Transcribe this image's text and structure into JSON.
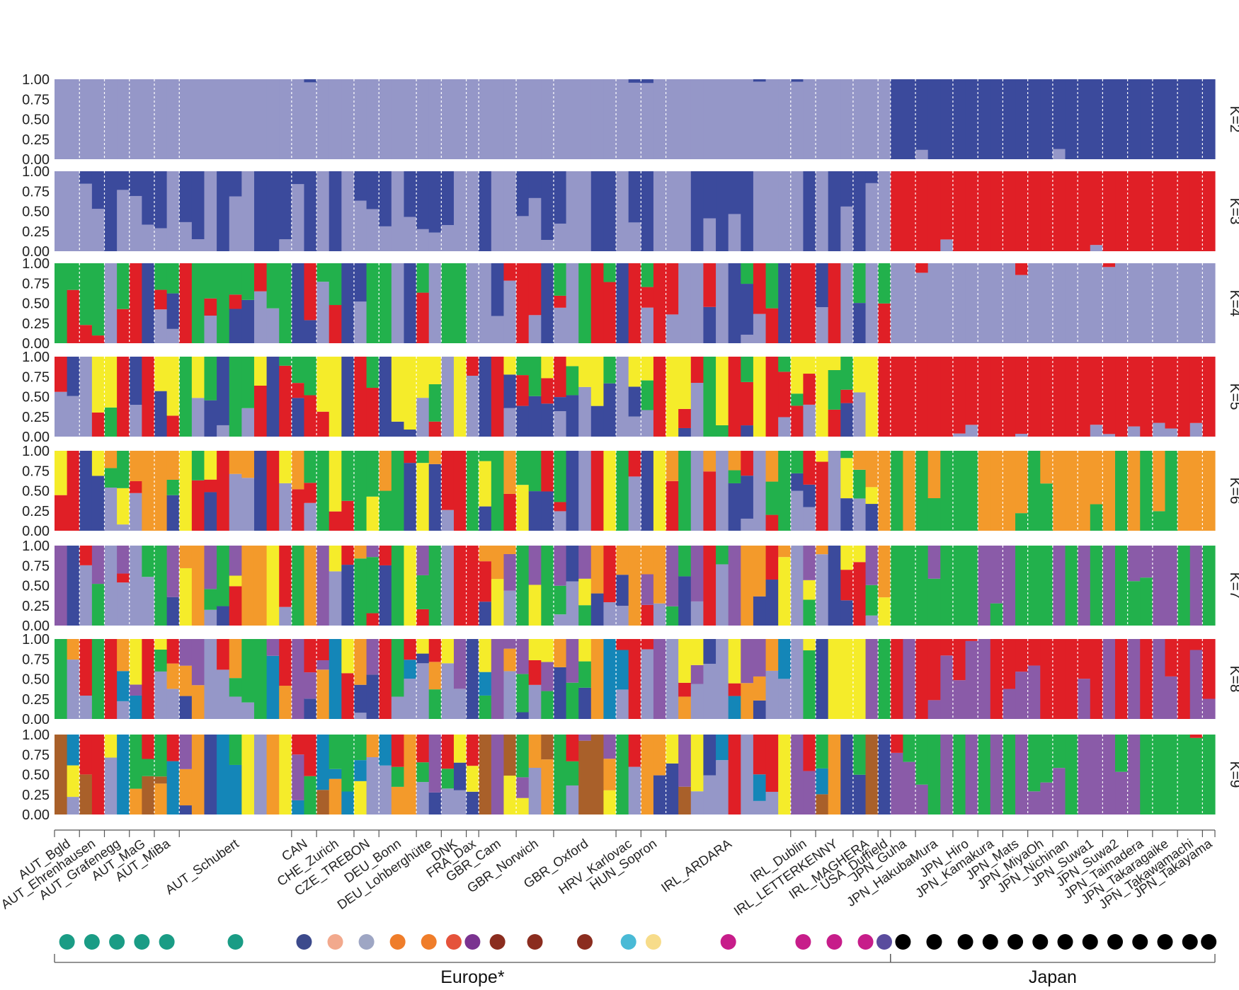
{
  "chart_data": {
    "type": "stacked-bar",
    "y_ticks": [
      "1.00",
      "0.75",
      "0.50",
      "0.25",
      "0.00"
    ],
    "ylim": [
      0,
      1
    ],
    "rows": [
      {
        "label": "K=2",
        "colors": [
          "#9597c8",
          "#3b4a9c"
        ]
      },
      {
        "label": "K=3",
        "colors": [
          "#9597c8",
          "#3b4a9c",
          "#e01f26"
        ]
      },
      {
        "label": "K=4",
        "colors": [
          "#9597c8",
          "#3b4a9c",
          "#e01f26",
          "#22b14c"
        ]
      },
      {
        "label": "K=5",
        "colors": [
          "#9597c8",
          "#3b4a9c",
          "#e01f26",
          "#22b14c",
          "#f5ec2a"
        ]
      },
      {
        "label": "K=6",
        "colors": [
          "#9597c8",
          "#3b4a9c",
          "#e01f26",
          "#f5ec2a",
          "#22b14c",
          "#f39a2b"
        ]
      },
      {
        "label": "K=7",
        "colors": [
          "#9597c8",
          "#3b4a9c",
          "#e01f26",
          "#22b14c",
          "#f5ec2a",
          "#8a5ba8",
          "#f39a2b"
        ]
      },
      {
        "label": "K=8",
        "colors": [
          "#9597c8",
          "#3b4a9c",
          "#22b14c",
          "#1486b8",
          "#f39a2b",
          "#8a5ba8",
          "#e01f26",
          "#f5ec2a"
        ]
      },
      {
        "label": "K=9",
        "colors": [
          "#9597c8",
          "#3b4a9c",
          "#f5ec2a",
          "#f39a2b",
          "#a9602a",
          "#1486b8",
          "#8a5ba8",
          "#22b14c",
          "#e01f26"
        ]
      }
    ],
    "populations": [
      {
        "name": "AUT_Bgld",
        "n": 2,
        "dot": "#1a9c85"
      },
      {
        "name": "AUT_Ehrenhausen",
        "n": 2,
        "dot": "#1a9c85"
      },
      {
        "name": "AUT_Grafenegg",
        "n": 2,
        "dot": "#1a9c85"
      },
      {
        "name": "AUT_MaG",
        "n": 2,
        "dot": "#1a9c85"
      },
      {
        "name": "AUT_MiBa",
        "n": 2,
        "dot": "#1a9c85"
      },
      {
        "name": "AUT_Schubert",
        "n": 9,
        "dot": "#1a9c85"
      },
      {
        "name": "CAN",
        "n": 2,
        "dot": "#3c4a8c"
      },
      {
        "name": "CHE_Zurich",
        "n": 3,
        "dot": "#f2a98d"
      },
      {
        "name": "CZE_TREBON",
        "n": 2,
        "dot": "#9ea6c4"
      },
      {
        "name": "DEU_Bonn",
        "n": 3,
        "dot": "#ef7d2a"
      },
      {
        "name": "DEU_Lohberghütte",
        "n": 2,
        "dot": "#ef7d2a"
      },
      {
        "name": "DNK",
        "n": 2,
        "dot": "#e5533b"
      },
      {
        "name": "FRA_Dax",
        "n": 1,
        "dot": "#7a3390"
      },
      {
        "name": "GBR_Cam",
        "n": 3,
        "dot": "#8b2d1f"
      },
      {
        "name": "GBR_Norwich",
        "n": 3,
        "dot": "#8b2d1f"
      },
      {
        "name": "GBR_Oxford",
        "n": 5,
        "dot": "#8b2d1f"
      },
      {
        "name": "HRV_Karlovac",
        "n": 2,
        "dot": "#49bad6"
      },
      {
        "name": "HUN_Sopron",
        "n": 2,
        "dot": "#f7dc8a"
      },
      {
        "name": "IRL_ARDARA",
        "n": 10,
        "dot": "#c71d8a"
      },
      {
        "name": "IRL_Dublin",
        "n": 2,
        "dot": "#c71d8a"
      },
      {
        "name": "IRL_LETTERKENNY",
        "n": 3,
        "dot": "#c71d8a"
      },
      {
        "name": "IRL_MAGHERA",
        "n": 2,
        "dot": "#c71d8a"
      },
      {
        "name": "USA_Duffield",
        "n": 1,
        "dot": "#5a4c9e"
      },
      {
        "name": "JPN_Guha",
        "n": 2,
        "dot": "#000000"
      },
      {
        "name": "JPN_HakubaMura",
        "n": 3,
        "dot": "#000000"
      },
      {
        "name": "JPN_Hiro",
        "n": 2,
        "dot": "#000000"
      },
      {
        "name": "JPN_Kamakura",
        "n": 2,
        "dot": "#000000"
      },
      {
        "name": "JPN_Mats",
        "n": 2,
        "dot": "#000000"
      },
      {
        "name": "JPN_MiyaOh",
        "n": 2,
        "dot": "#000000"
      },
      {
        "name": "JPN_Nichinan",
        "n": 2,
        "dot": "#000000"
      },
      {
        "name": "JPN_Suwa1",
        "n": 2,
        "dot": "#000000"
      },
      {
        "name": "JPN_Suwa2",
        "n": 2,
        "dot": "#000000"
      },
      {
        "name": "JPN_Taimadera",
        "n": 2,
        "dot": "#000000"
      },
      {
        "name": "JPN_Takaragaike",
        "n": 2,
        "dot": "#000000"
      },
      {
        "name": "JPN_Takawamachi",
        "n": 2,
        "dot": "#000000"
      },
      {
        "name": "JPN_Takayama",
        "n": 1,
        "dot": "#000000"
      }
    ],
    "regions": [
      {
        "label": "Europe*",
        "populations": 23
      },
      {
        "label": "Japan",
        "populations": 13
      }
    ]
  }
}
